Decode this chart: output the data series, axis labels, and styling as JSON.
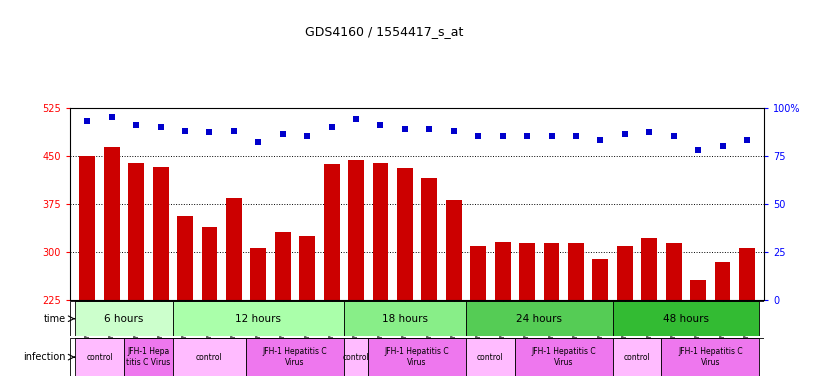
{
  "title": "GDS4160 / 1554417_s_at",
  "samples": [
    "GSM523814",
    "GSM523815",
    "GSM523800",
    "GSM523801",
    "GSM523816",
    "GSM523817",
    "GSM523818",
    "GSM523802",
    "GSM523803",
    "GSM523804",
    "GSM523819",
    "GSM523820",
    "GSM523821",
    "GSM523805",
    "GSM523806",
    "GSM523807",
    "GSM523822",
    "GSM523823",
    "GSM523824",
    "GSM523808",
    "GSM523809",
    "GSM523810",
    "GSM523825",
    "GSM523826",
    "GSM523827",
    "GSM523811",
    "GSM523812",
    "GSM523813"
  ],
  "counts": [
    449,
    463,
    438,
    432,
    355,
    338,
    383,
    305,
    330,
    325,
    437,
    443,
    438,
    430,
    415,
    380,
    308,
    315,
    313,
    313,
    313,
    289,
    308,
    321,
    314,
    255,
    283,
    305
  ],
  "percentile_ranks": [
    93,
    95,
    91,
    90,
    88,
    87,
    88,
    82,
    86,
    85,
    90,
    94,
    91,
    89,
    89,
    88,
    85,
    85,
    85,
    85,
    85,
    83,
    86,
    87,
    85,
    78,
    80,
    83
  ],
  "time_groups": [
    {
      "label": "6 hours",
      "start": 0,
      "end": 4
    },
    {
      "label": "12 hours",
      "start": 4,
      "end": 11
    },
    {
      "label": "18 hours",
      "start": 11,
      "end": 16
    },
    {
      "label": "24 hours",
      "start": 16,
      "end": 22
    },
    {
      "label": "48 hours",
      "start": 22,
      "end": 28
    }
  ],
  "time_colors": [
    "#ccffcc",
    "#aaffaa",
    "#88ee88",
    "#55cc55",
    "#33bb33"
  ],
  "infection_groups": [
    {
      "label": "control",
      "start": 0,
      "end": 2
    },
    {
      "label": "JFH-1 Hepa\ntitis C Virus",
      "start": 2,
      "end": 4
    },
    {
      "label": "control",
      "start": 4,
      "end": 7
    },
    {
      "label": "JFH-1 Hepatitis C\nVirus",
      "start": 7,
      "end": 11
    },
    {
      "label": "control",
      "start": 11,
      "end": 12
    },
    {
      "label": "JFH-1 Hepatitis C\nVirus",
      "start": 12,
      "end": 16
    },
    {
      "label": "control",
      "start": 16,
      "end": 18
    },
    {
      "label": "JFH-1 Hepatitis C\nVirus",
      "start": 18,
      "end": 22
    },
    {
      "label": "control",
      "start": 22,
      "end": 24
    },
    {
      "label": "JFH-1 Hepatitis C\nVirus",
      "start": 24,
      "end": 28
    }
  ],
  "inf_color_control": "#ffbbff",
  "inf_color_virus": "#ee77ee",
  "bar_color": "#cc0000",
  "dot_color": "#0000cc",
  "ylim_left": [
    225,
    525
  ],
  "ylim_right": [
    0,
    100
  ],
  "yticks_left": [
    225,
    300,
    375,
    450,
    525
  ],
  "yticks_right": [
    0,
    25,
    50,
    75,
    100
  ]
}
